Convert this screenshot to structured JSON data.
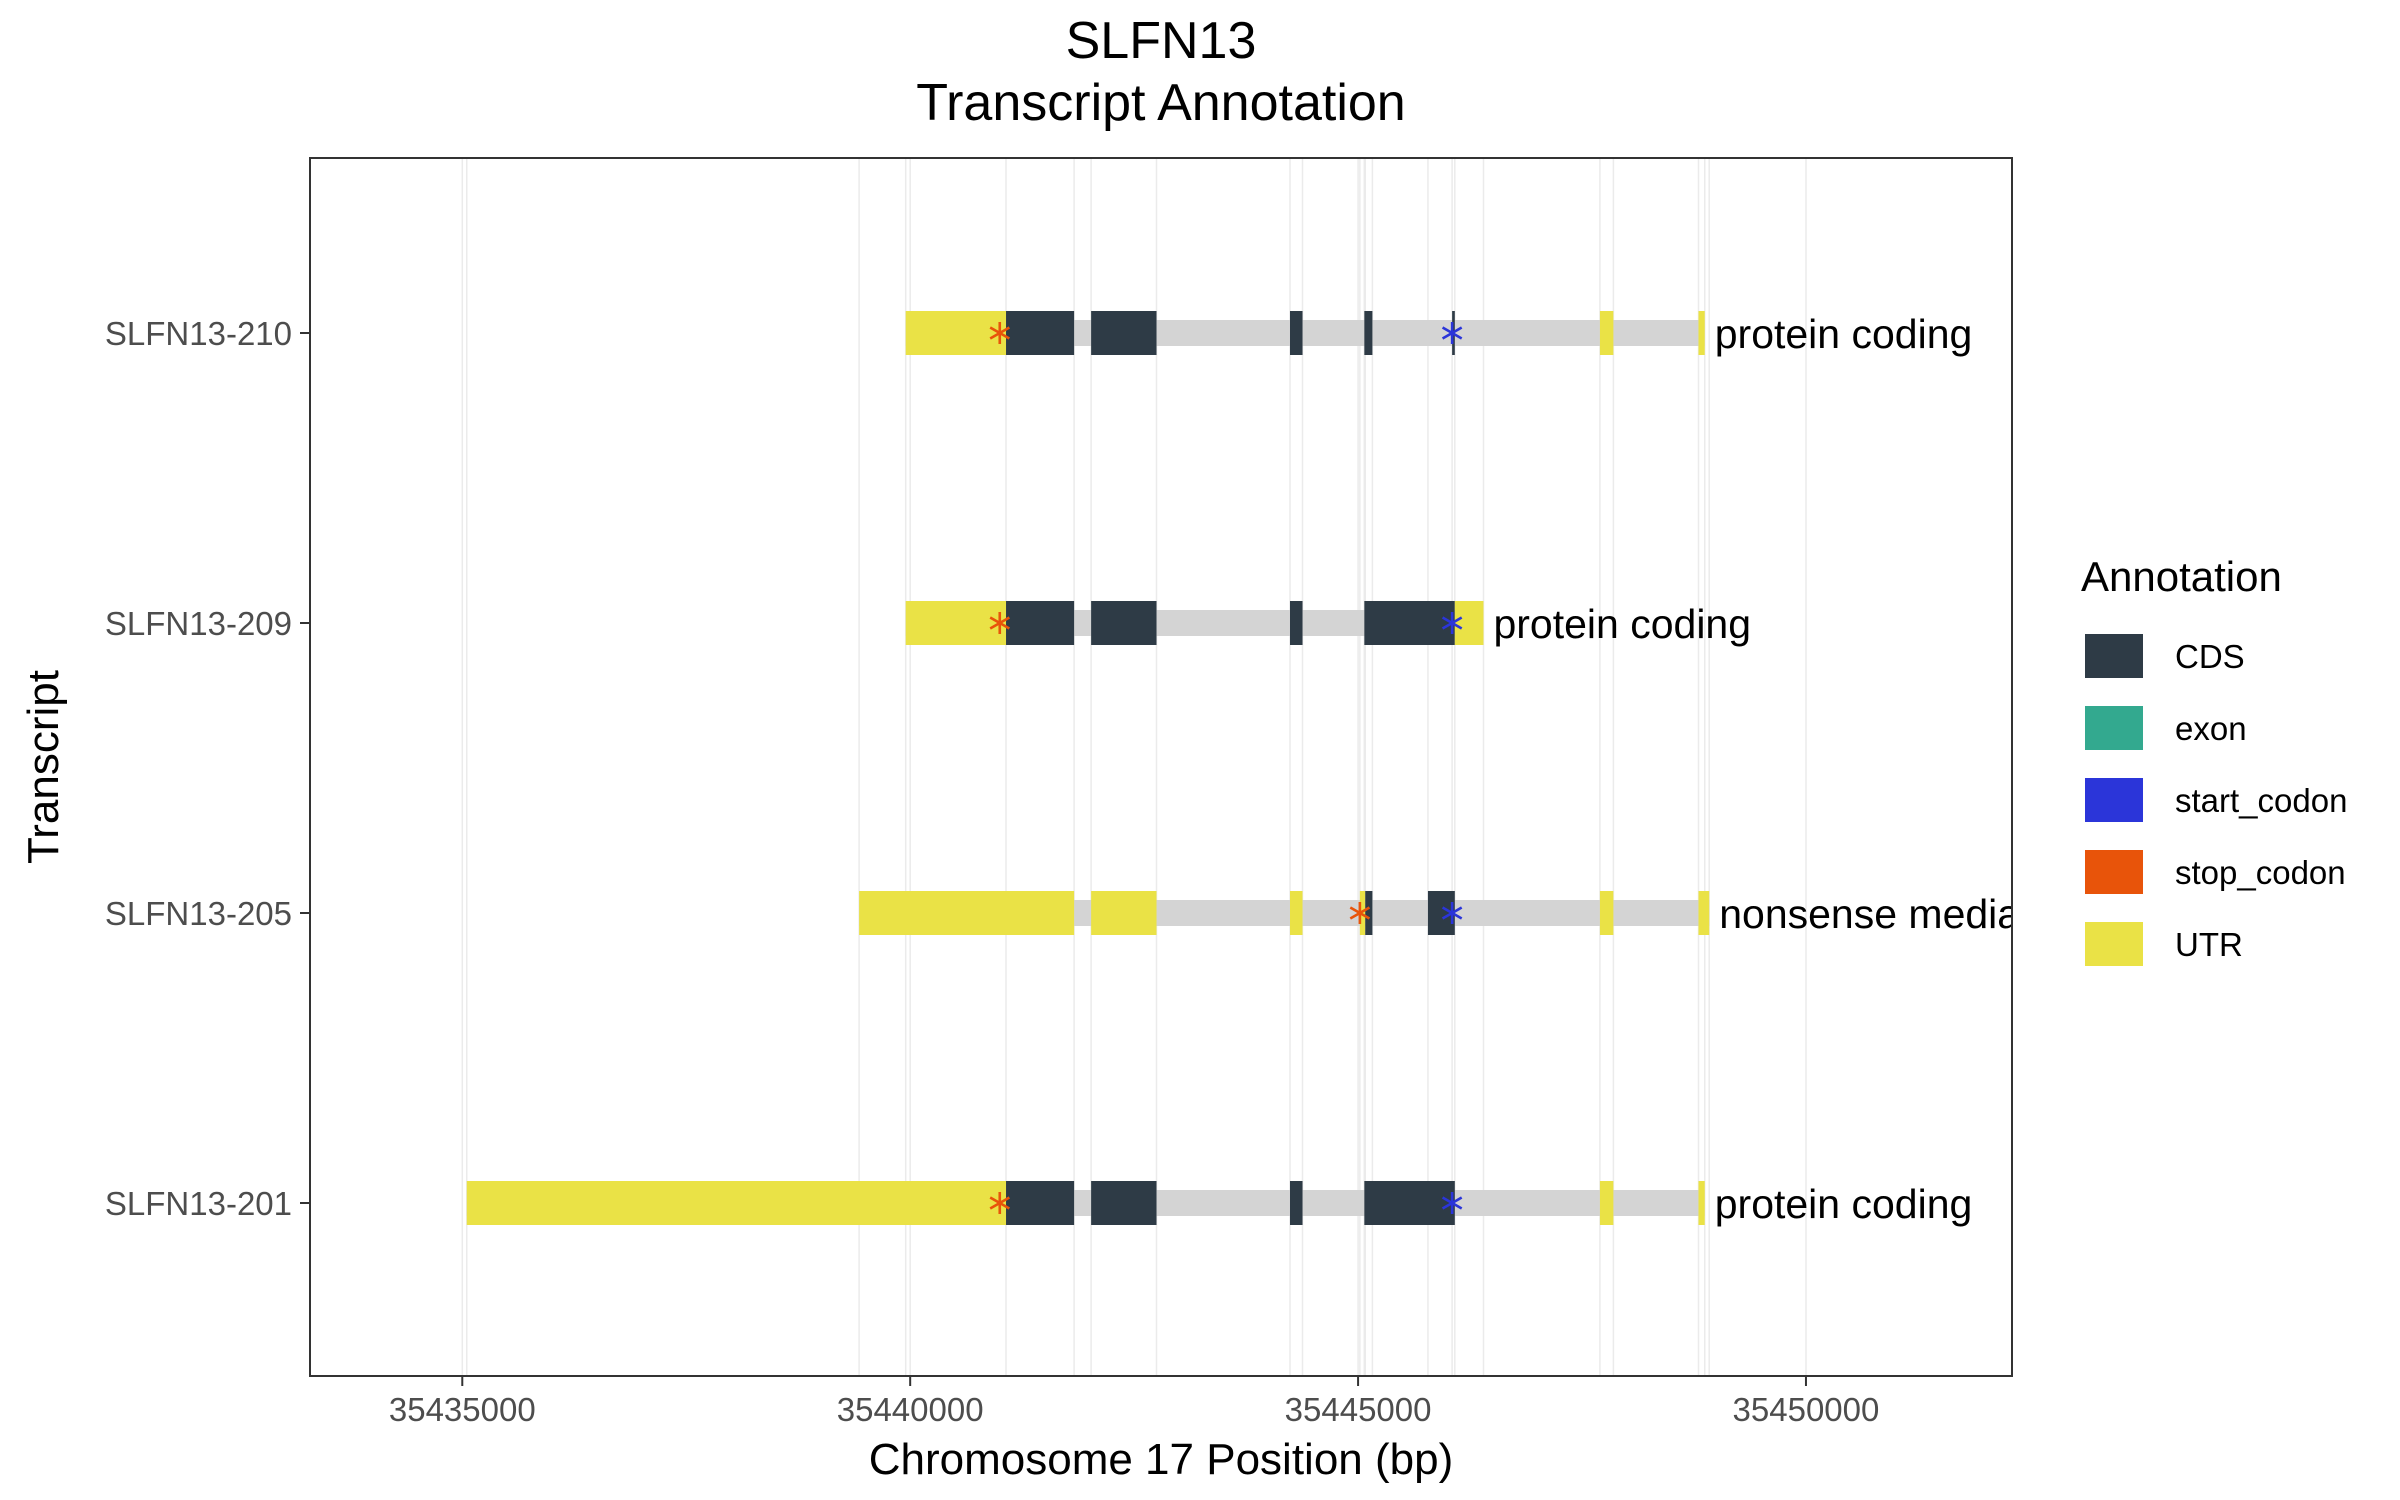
{
  "chart_data": {
    "type": "gene-track",
    "title": [
      "SLFN13",
      "Transcript Annotation"
    ],
    "xlabel": "Chromosome 17 Position (bp)",
    "ylabel": "Transcript",
    "xlim": [
      34165000,
      35453000
    ],
    "x_ticks": [
      {
        "value": 35435000,
        "label": "35435000"
      },
      {
        "value": 35440000,
        "label": "35440000"
      },
      {
        "value": 35445000,
        "label": "35445000"
      },
      {
        "value": 35450000,
        "label": "35450000"
      }
    ],
    "grid": true,
    "legend": {
      "title": "Annotation",
      "position": "right",
      "entries": [
        {
          "key": "CDS",
          "label": "CDS",
          "color": "#2e3b46"
        },
        {
          "key": "exon",
          "label": "exon",
          "color": "#33a98f"
        },
        {
          "key": "start_codon",
          "label": "start_codon",
          "color": "#2b35d9"
        },
        {
          "key": "stop_codon",
          "label": "stop_codon",
          "color": "#e8540a"
        },
        {
          "key": "UTR",
          "label": "UTR",
          "color": "#eae246"
        }
      ]
    },
    "intron_color": "#d4d4d4",
    "transcripts": [
      {
        "name": "SLFN13-210",
        "biotype": "protein coding",
        "start": 35439950,
        "end": 35448870,
        "features": [
          {
            "type": "UTR",
            "start": 35439950,
            "end": 35441070
          },
          {
            "type": "CDS",
            "start": 35441070,
            "end": 35441830
          },
          {
            "type": "CDS",
            "start": 35442020,
            "end": 35442750
          },
          {
            "type": "CDS",
            "start": 35444240,
            "end": 35444380
          },
          {
            "type": "CDS",
            "start": 35445070,
            "end": 35445160
          },
          {
            "type": "CDS",
            "start": 35446050,
            "end": 35446080
          },
          {
            "type": "UTR",
            "start": 35447700,
            "end": 35447850
          },
          {
            "type": "UTR",
            "start": 35448800,
            "end": 35448870
          }
        ],
        "stop_codon": 35441000,
        "start_codon": 35446050
      },
      {
        "name": "SLFN13-209",
        "biotype": "protein coding",
        "start": 35439950,
        "end": 35446400,
        "features": [
          {
            "type": "UTR",
            "start": 35439950,
            "end": 35441070
          },
          {
            "type": "CDS",
            "start": 35441070,
            "end": 35441830
          },
          {
            "type": "CDS",
            "start": 35442020,
            "end": 35442750
          },
          {
            "type": "CDS",
            "start": 35444240,
            "end": 35444380
          },
          {
            "type": "CDS",
            "start": 35445070,
            "end": 35446080
          },
          {
            "type": "UTR",
            "start": 35446080,
            "end": 35446400
          }
        ],
        "stop_codon": 35441000,
        "start_codon": 35446050
      },
      {
        "name": "SLFN13-205",
        "biotype": "nonsense mediated decay",
        "start": 35439430,
        "end": 35448920,
        "features": [
          {
            "type": "UTR",
            "start": 35439430,
            "end": 35441830
          },
          {
            "type": "UTR",
            "start": 35442020,
            "end": 35442750
          },
          {
            "type": "UTR",
            "start": 35444240,
            "end": 35444380
          },
          {
            "type": "UTR",
            "start": 35445020,
            "end": 35445080
          },
          {
            "type": "CDS",
            "start": 35445080,
            "end": 35445160
          },
          {
            "type": "CDS",
            "start": 35445780,
            "end": 35446080
          },
          {
            "type": "UTR",
            "start": 35447700,
            "end": 35447850
          },
          {
            "type": "UTR",
            "start": 35448800,
            "end": 35448920
          }
        ],
        "stop_codon": 35445020,
        "start_codon": 35446050
      },
      {
        "name": "SLFN13-201",
        "biotype": "protein coding",
        "start": 35435050,
        "end": 35448870,
        "features": [
          {
            "type": "UTR",
            "start": 35435050,
            "end": 35441070
          },
          {
            "type": "CDS",
            "start": 35441070,
            "end": 35441830
          },
          {
            "type": "CDS",
            "start": 35442020,
            "end": 35442750
          },
          {
            "type": "CDS",
            "start": 35444240,
            "end": 35444380
          },
          {
            "type": "CDS",
            "start": 35445070,
            "end": 35446080
          },
          {
            "type": "UTR",
            "start": 35447700,
            "end": 35447850
          },
          {
            "type": "UTR",
            "start": 35448800,
            "end": 35448870
          }
        ],
        "stop_codon": 35441000,
        "start_codon": 35446050
      }
    ]
  }
}
